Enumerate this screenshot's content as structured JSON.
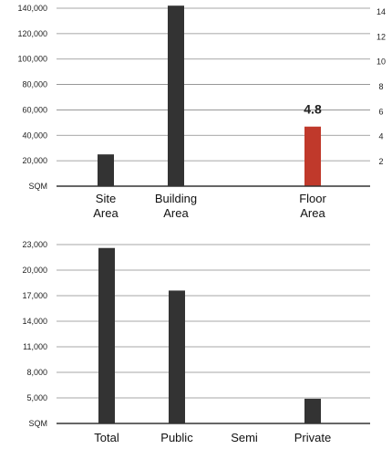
{
  "chart_data": [
    {
      "type": "bar",
      "categories": [
        "Site\nArea",
        "Building\nArea",
        "Floor\nArea"
      ],
      "series": [
        {
          "values": [
            25000,
            142000,
            null
          ],
          "axis": "left",
          "color": "#333333"
        },
        {
          "values": [
            null,
            null,
            4.8
          ],
          "axis": "right",
          "color": "#c0392b"
        }
      ],
      "left_ticks": [
        {
          "v": 0,
          "label": "SQM"
        },
        {
          "v": 20000,
          "label": "20,000"
        },
        {
          "v": 40000,
          "label": "40,000"
        },
        {
          "v": 60000,
          "label": "60,000"
        },
        {
          "v": 80000,
          "label": "80,000"
        },
        {
          "v": 100000,
          "label": "100,000"
        },
        {
          "v": 120000,
          "label": "120,000"
        },
        {
          "v": 140000,
          "label": "140,000"
        }
      ],
      "right_ticks": [
        {
          "v": 2,
          "label": "2"
        },
        {
          "v": 4,
          "label": "4"
        },
        {
          "v": 6,
          "label": "6"
        },
        {
          "v": 8,
          "label": "8"
        },
        {
          "v": 10,
          "label": "10"
        },
        {
          "v": 12,
          "label": "12"
        },
        {
          "v": 14,
          "label": "14"
        }
      ],
      "data_labels": [
        {
          "category_index": 2,
          "text": "4.8"
        }
      ],
      "grid": true
    },
    {
      "type": "bar",
      "categories": [
        "Total",
        "Public",
        "Semi",
        "Private"
      ],
      "values": [
        22600,
        17600,
        0,
        4900
      ],
      "color": "#333333",
      "left_ticks": [
        {
          "v": 2000,
          "label": "SQM"
        },
        {
          "v": 5000,
          "label": "5,000"
        },
        {
          "v": 8000,
          "label": "8,000"
        },
        {
          "v": 11000,
          "label": "11,000"
        },
        {
          "v": 14000,
          "label": "14,000"
        },
        {
          "v": 17000,
          "label": "17,000"
        },
        {
          "v": 20000,
          "label": "20,000"
        },
        {
          "v": 23000,
          "label": "23,000"
        }
      ],
      "grid": true
    }
  ]
}
